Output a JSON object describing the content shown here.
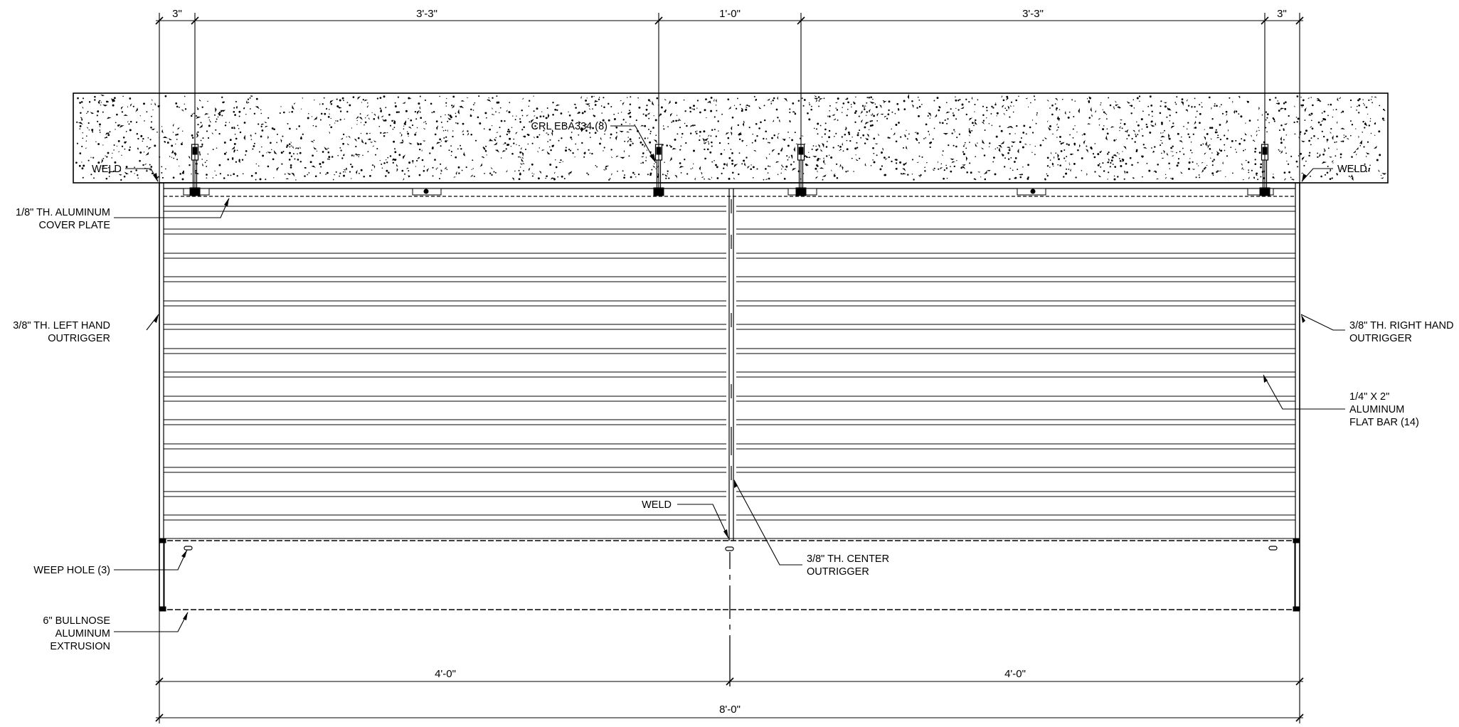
{
  "dimensions": {
    "top": [
      "3\"",
      "3'-3\"",
      "1'-0\"",
      "3'-3\"",
      "3\""
    ],
    "bottom_halves": [
      "4'-0\"",
      "4'-0\""
    ],
    "overall": "8'-0\""
  },
  "callouts": {
    "anchor": "CRL EBA334 (8)",
    "weld_left": "WELD",
    "weld_right": "WELD",
    "weld_center": "WELD",
    "cover_plate": [
      "1/8\" TH. ALUMINUM",
      "COVER PLATE"
    ],
    "left_outrigger": [
      "3/8\" TH. LEFT HAND",
      "OUTRIGGER"
    ],
    "right_outrigger": [
      "3/8\" TH. RIGHT HAND",
      "OUTRIGGER"
    ],
    "flat_bar": [
      "1/4\" X 2\"",
      "ALUMINUM",
      "FLAT BAR (14)"
    ],
    "center_outrigger": [
      "3/8\" TH. CENTER",
      "OUTRIGGER"
    ],
    "weep_hole": "WEEP HOLE (3)",
    "bullnose": [
      "6\" BULLNOSE",
      "ALUMINUM",
      "EXTRUSION"
    ]
  },
  "colors": {
    "line": "#000000",
    "background": "#ffffff"
  }
}
